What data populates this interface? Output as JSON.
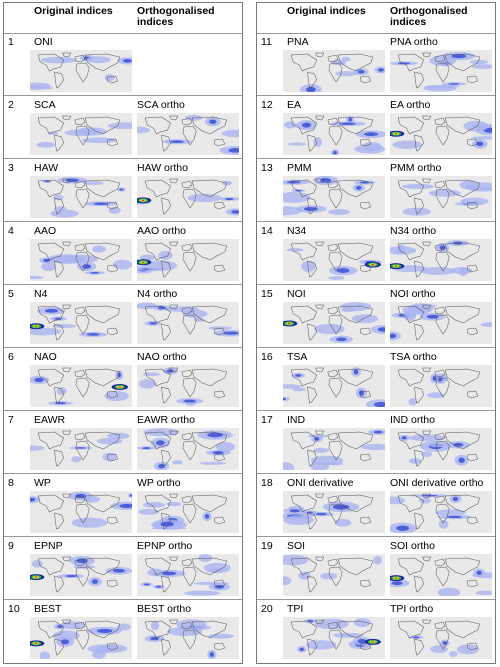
{
  "headers": {
    "original": "Original indices",
    "ortho": "Orthogonalised indices"
  },
  "left_rows": [
    {
      "num": "1",
      "orig": "ONI",
      "ortho": ""
    },
    {
      "num": "2",
      "orig": "SCA",
      "ortho": "SCA ortho"
    },
    {
      "num": "3",
      "orig": "HAW",
      "ortho": "HAW ortho"
    },
    {
      "num": "4",
      "orig": "AAO",
      "ortho": "AAO ortho"
    },
    {
      "num": "5",
      "orig": "N4",
      "ortho": "N4 ortho"
    },
    {
      "num": "6",
      "orig": "NAO",
      "ortho": "NAO ortho"
    },
    {
      "num": "7",
      "orig": "EAWR",
      "ortho": "EAWR ortho"
    },
    {
      "num": "8",
      "orig": "WP",
      "ortho": "WP ortho"
    },
    {
      "num": "9",
      "orig": "EPNP",
      "ortho": "EPNP ortho"
    },
    {
      "num": "10",
      "orig": "BEST",
      "ortho": "BEST ortho"
    }
  ],
  "right_rows": [
    {
      "num": "11",
      "orig": "PNA",
      "ortho": "PNA ortho"
    },
    {
      "num": "12",
      "orig": "EA",
      "ortho": "EA ortho"
    },
    {
      "num": "13",
      "orig": "PMM",
      "ortho": "PMM ortho"
    },
    {
      "num": "14",
      "orig": "N34",
      "ortho": "N34 ortho"
    },
    {
      "num": "15",
      "orig": "NOI",
      "ortho": "NOI ortho"
    },
    {
      "num": "16",
      "orig": "TSA",
      "ortho": "TSA ortho"
    },
    {
      "num": "17",
      "orig": "IND",
      "ortho": "IND ortho"
    },
    {
      "num": "18",
      "orig": "ONI derivative",
      "ortho": "ONI derivative ortho"
    },
    {
      "num": "19",
      "orig": "SOI",
      "ortho": "SOI ortho"
    },
    {
      "num": "20",
      "orig": "TPI",
      "ortho": "TPI ortho"
    }
  ],
  "colors": {
    "map_background": "#e9e9e9",
    "weak": "#aab4f0",
    "medium": "#3a4fd8",
    "strong": "#1a22a0",
    "hot_green": "#2ec44a",
    "hot_yellow": "#ffe12a",
    "hot_red": "#e8261a",
    "coastline": "#555555"
  }
}
